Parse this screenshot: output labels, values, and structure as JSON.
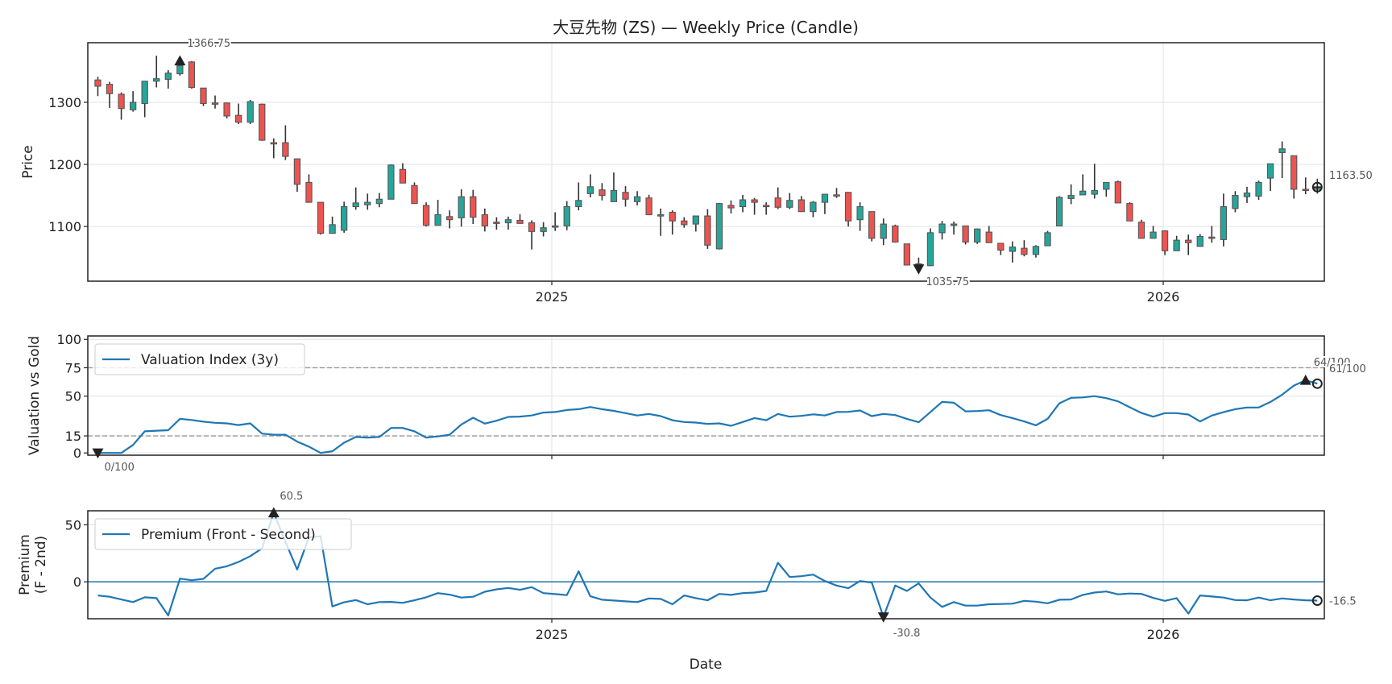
{
  "title": "大豆先物 (ZS) — Weekly Price (Candle)",
  "colors": {
    "up": "#26a69a",
    "down": "#ef5350",
    "candle_edge": "#555555",
    "wick": "#333333",
    "line": "#1f77b4",
    "threshold": "#999999",
    "grid": "#e6e6e6",
    "marker": "#222222"
  },
  "chart_data": [
    {
      "type": "candlestick",
      "ylabel": "Price",
      "ylim": [
        1012,
        1396
      ],
      "yticks": [
        1100,
        1200,
        1300
      ],
      "xticks": [
        {
          "label": "2025",
          "date": "2025-01-01"
        },
        {
          "label": "2026",
          "date": "2026-01-01"
        }
      ],
      "grid": true,
      "dates": [
        "2024-04-05",
        "2024-04-12",
        "2024-04-19",
        "2024-04-26",
        "2024-05-03",
        "2024-05-10",
        "2024-05-17",
        "2024-05-24",
        "2024-05-31",
        "2024-06-07",
        "2024-06-14",
        "2024-06-21",
        "2024-06-28",
        "2024-07-05",
        "2024-07-12",
        "2024-07-19",
        "2024-07-26",
        "2024-08-02",
        "2024-08-09",
        "2024-08-16",
        "2024-08-23",
        "2024-08-30",
        "2024-09-06",
        "2024-09-13",
        "2024-09-20",
        "2024-09-27",
        "2024-10-04",
        "2024-10-11",
        "2024-10-18",
        "2024-10-25",
        "2024-11-01",
        "2024-11-08",
        "2024-11-15",
        "2024-11-22",
        "2024-11-29",
        "2024-12-06",
        "2024-12-13",
        "2024-12-20",
        "2024-12-27",
        "2025-01-03",
        "2025-01-10",
        "2025-01-17",
        "2025-01-24",
        "2025-01-31",
        "2025-02-07",
        "2025-02-14",
        "2025-02-21",
        "2025-02-28",
        "2025-03-07",
        "2025-03-14",
        "2025-03-21",
        "2025-03-28",
        "2025-04-04",
        "2025-04-11",
        "2025-04-18",
        "2025-04-25",
        "2025-05-02",
        "2025-05-09",
        "2025-05-16",
        "2025-05-23",
        "2025-05-30",
        "2025-06-06",
        "2025-06-13",
        "2025-06-20",
        "2025-06-27",
        "2025-07-04",
        "2025-07-11",
        "2025-07-18",
        "2025-07-25",
        "2025-08-01",
        "2025-08-08",
        "2025-08-15",
        "2025-08-22",
        "2025-08-29",
        "2025-09-05",
        "2025-09-12",
        "2025-09-19",
        "2025-09-26",
        "2025-10-03",
        "2025-10-10",
        "2025-10-17",
        "2025-10-24",
        "2025-10-31",
        "2025-11-07",
        "2025-11-14",
        "2025-11-21",
        "2025-11-28",
        "2025-12-05",
        "2025-12-12",
        "2025-12-19",
        "2025-12-26",
        "2026-01-02",
        "2026-01-09",
        "2026-01-16",
        "2026-01-23",
        "2026-01-30",
        "2026-02-06",
        "2026-02-13",
        "2026-02-20",
        "2026-02-27",
        "2026-03-06",
        "2026-03-13",
        "2026-03-20",
        "2026-03-27",
        "2026-04-03"
      ],
      "ohlc_fields": [
        "open",
        "high",
        "low",
        "close"
      ],
      "ohlc": [
        [
          1336,
          1341,
          1310,
          1326
        ],
        [
          1329,
          1333,
          1291,
          1314
        ],
        [
          1313,
          1316,
          1272,
          1290
        ],
        [
          1288,
          1318,
          1285,
          1300
        ],
        [
          1298,
          1334,
          1276,
          1334
        ],
        [
          1334,
          1375,
          1324,
          1338
        ],
        [
          1337,
          1352,
          1322,
          1347
        ],
        [
          1346,
          1366.75,
          1343,
          1359
        ],
        [
          1365,
          1366.5,
          1322,
          1324
        ],
        [
          1323,
          1323,
          1294,
          1298
        ],
        [
          1299,
          1311,
          1290,
          1298
        ],
        [
          1299,
          1299,
          1274,
          1278
        ],
        [
          1279,
          1298,
          1265,
          1268
        ],
        [
          1268,
          1304,
          1265,
          1301
        ],
        [
          1297,
          1298,
          1238,
          1239
        ],
        [
          1235,
          1242,
          1210,
          1233
        ],
        [
          1235,
          1263,
          1207,
          1213
        ],
        [
          1209,
          1209,
          1156,
          1168
        ],
        [
          1171,
          1184,
          1139,
          1139
        ],
        [
          1139,
          1139,
          1087,
          1089
        ],
        [
          1089,
          1116,
          1089,
          1103
        ],
        [
          1094,
          1140,
          1090,
          1132
        ],
        [
          1132,
          1163,
          1127,
          1138
        ],
        [
          1135,
          1153,
          1127,
          1139
        ],
        [
          1137,
          1154,
          1131,
          1144
        ],
        [
          1144,
          1200,
          1144,
          1199
        ],
        [
          1192,
          1202,
          1170,
          1170
        ],
        [
          1166,
          1171,
          1137,
          1137
        ],
        [
          1134,
          1139,
          1100,
          1102
        ],
        [
          1102,
          1143,
          1102,
          1119
        ],
        [
          1116,
          1126,
          1097,
          1111
        ],
        [
          1114,
          1160,
          1100,
          1148
        ],
        [
          1148,
          1159,
          1104,
          1115
        ],
        [
          1119,
          1129,
          1092,
          1101
        ],
        [
          1107,
          1115,
          1095,
          1106
        ],
        [
          1106,
          1116,
          1095,
          1111
        ],
        [
          1110,
          1120,
          1105,
          1105
        ],
        [
          1106,
          1110,
          1063,
          1092
        ],
        [
          1092,
          1107,
          1084,
          1098
        ],
        [
          1100,
          1123,
          1093,
          1101
        ],
        [
          1101,
          1141,
          1094,
          1132
        ],
        [
          1132,
          1171,
          1126,
          1142
        ],
        [
          1153,
          1184,
          1147,
          1164
        ],
        [
          1159,
          1170,
          1142,
          1150
        ],
        [
          1140,
          1187,
          1140,
          1158
        ],
        [
          1155,
          1165,
          1132,
          1144
        ],
        [
          1140,
          1157,
          1134,
          1148
        ],
        [
          1146,
          1151,
          1119,
          1119
        ],
        [
          1119,
          1129,
          1085,
          1119
        ],
        [
          1123,
          1126,
          1087,
          1109
        ],
        [
          1109,
          1115,
          1098,
          1103
        ],
        [
          1104,
          1117,
          1092,
          1117
        ],
        [
          1117,
          1128,
          1064,
          1070
        ],
        [
          1064,
          1138,
          1063,
          1137
        ],
        [
          1134,
          1142,
          1121,
          1130
        ],
        [
          1132,
          1151,
          1123,
          1143
        ],
        [
          1143,
          1146,
          1119,
          1139
        ],
        [
          1134,
          1139,
          1119,
          1133
        ],
        [
          1146,
          1163,
          1128,
          1131
        ],
        [
          1131,
          1154,
          1128,
          1142
        ],
        [
          1143,
          1149,
          1124,
          1124
        ],
        [
          1124,
          1141,
          1115,
          1139
        ],
        [
          1139,
          1152,
          1120,
          1152
        ],
        [
          1151,
          1162,
          1146,
          1150
        ],
        [
          1155,
          1155,
          1100,
          1109
        ],
        [
          1111,
          1139,
          1093,
          1132
        ],
        [
          1124,
          1124,
          1076,
          1081
        ],
        [
          1081,
          1113,
          1070,
          1104
        ],
        [
          1101,
          1103,
          1074,
          1075
        ],
        [
          1072,
          1072,
          1038,
          1038
        ],
        [
          1040,
          1050,
          1035.75,
          1038
        ],
        [
          1037,
          1097,
          1036,
          1090
        ],
        [
          1090,
          1109,
          1079,
          1104
        ],
        [
          1103,
          1108,
          1087,
          1104
        ],
        [
          1101,
          1101,
          1071,
          1075
        ],
        [
          1075,
          1097,
          1072,
          1096
        ],
        [
          1091,
          1101,
          1074,
          1074
        ],
        [
          1073,
          1073,
          1054,
          1062
        ],
        [
          1060,
          1076,
          1042,
          1067
        ],
        [
          1065,
          1078,
          1052,
          1055
        ],
        [
          1055,
          1070,
          1050,
          1068
        ],
        [
          1069,
          1093,
          1069,
          1090
        ],
        [
          1101,
          1149,
          1101,
          1147
        ],
        [
          1145,
          1168,
          1136,
          1150
        ],
        [
          1151,
          1184,
          1151,
          1157
        ],
        [
          1152,
          1201,
          1145,
          1158
        ],
        [
          1160,
          1171,
          1148,
          1171
        ],
        [
          1172,
          1174,
          1138,
          1138
        ],
        [
          1137,
          1139,
          1109,
          1109
        ],
        [
          1107,
          1111,
          1081,
          1081
        ],
        [
          1081,
          1101,
          1081,
          1091
        ],
        [
          1093,
          1094,
          1054,
          1061
        ],
        [
          1061,
          1085,
          1061,
          1078
        ],
        [
          1078,
          1087,
          1054,
          1074
        ],
        [
          1068,
          1088,
          1068,
          1084
        ],
        [
          1083,
          1101,
          1074,
          1082
        ],
        [
          1079,
          1153,
          1068,
          1132
        ],
        [
          1129,
          1157,
          1123,
          1150
        ],
        [
          1148,
          1164,
          1138,
          1154
        ],
        [
          1149,
          1174,
          1143,
          1171
        ],
        [
          1178,
          1201,
          1157,
          1201
        ],
        [
          1219,
          1237,
          1178,
          1225
        ],
        [
          1214,
          1214,
          1145,
          1160
        ],
        [
          1160,
          1179,
          1152,
          1159
        ],
        [
          1160,
          1177,
          1153,
          1163.5
        ]
      ],
      "annotations": [
        {
          "kind": "max",
          "index": 7,
          "value": 1366.75,
          "text": "1366.75",
          "marker": "triangle-up"
        },
        {
          "kind": "min",
          "index": 70,
          "value": 1035.75,
          "text": "1035.75",
          "marker": "triangle-down"
        },
        {
          "kind": "last",
          "index": 104,
          "value": 1163.5,
          "text": "1163.50",
          "marker": "circle-plus"
        }
      ]
    },
    {
      "type": "line",
      "ylabel": "Valuation vs Gold",
      "ylim": [
        -2,
        103
      ],
      "yticks": [
        0,
        15,
        50,
        75,
        100
      ],
      "grid": true,
      "show_xtick_labels": false,
      "legend": {
        "label": "Valuation Index (3y)",
        "placement": "upper-left"
      },
      "reference_lines": [
        75,
        15
      ],
      "series": [
        {
          "name": "Valuation Index (3y)",
          "values": [
            0,
            0,
            0,
            7,
            19,
            19.6,
            20,
            30,
            29,
            27.5,
            26.5,
            26,
            24.5,
            26,
            17,
            16,
            16,
            10,
            5.5,
            0,
            1.5,
            9,
            14,
            13.5,
            14,
            22,
            22,
            19,
            13.5,
            14.5,
            16,
            25,
            31,
            25.8,
            28.4,
            31.7,
            32,
            33,
            35.5,
            36,
            37.8,
            38.5,
            40.4,
            38.5,
            37,
            35,
            33,
            34.3,
            32.4,
            28.8,
            27.2,
            26.7,
            25.5,
            26,
            23.9,
            27.2,
            30.7,
            28.8,
            34.3,
            31.9,
            32.6,
            34,
            33,
            36,
            36.2,
            37.4,
            32.4,
            34.3,
            33.3,
            30,
            27,
            36,
            45,
            44.2,
            36.6,
            36.9,
            37.6,
            33.3,
            30.7,
            27.7,
            24.3,
            30,
            43.7,
            48.5,
            48.9,
            50,
            48.2,
            45.4,
            40.2,
            35.2,
            31.9,
            35,
            35,
            33.8,
            27.7,
            32.9,
            35.9,
            38.5,
            40,
            40,
            44.9,
            51.3,
            59.3,
            64,
            61
          ]
        }
      ],
      "annotations": [
        {
          "kind": "min",
          "index": 0,
          "value": 0,
          "text": "0/100",
          "marker": "triangle-down"
        },
        {
          "kind": "max",
          "index": 103,
          "value": 64,
          "text": "64/100",
          "marker": "triangle-up"
        },
        {
          "kind": "last",
          "index": 104,
          "value": 61,
          "text": "61/100",
          "marker": "circle"
        }
      ]
    },
    {
      "type": "line",
      "ylabel": [
        "Premium",
        "(F - 2nd)"
      ],
      "xlabel": "Date",
      "ylim": [
        -32.4,
        62.3
      ],
      "yticks": [
        0,
        50
      ],
      "grid": true,
      "show_xtick_labels": true,
      "legend": {
        "label": "Premium (Front - Second)",
        "placement": "upper-left"
      },
      "zero_line": 0,
      "series": [
        {
          "name": "Premium (Front - Second)",
          "values": [
            -12,
            -13.1,
            -15.5,
            -17.8,
            -13.6,
            -14.3,
            -29.6,
            2.8,
            1.4,
            2.6,
            11.5,
            13.6,
            17.4,
            22.5,
            29.3,
            60.5,
            35,
            10.8,
            39,
            40,
            -21.6,
            -18,
            -16,
            -19.7,
            -17.8,
            -17.6,
            -18.5,
            -16.2,
            -13.6,
            -9.9,
            -11.3,
            -13.8,
            -13.1,
            -8.7,
            -6.6,
            -5.4,
            -7,
            -4.7,
            -9.9,
            -10.8,
            -11.7,
            9.2,
            -12.7,
            -15.7,
            -16.4,
            -17.1,
            -17.8,
            -14.6,
            -15,
            -19.7,
            -12,
            -14.3,
            -16.2,
            -10.6,
            -11.5,
            -9.9,
            -9.4,
            -8,
            16.7,
            4.2,
            4.9,
            6.3,
            0.7,
            -3.3,
            -5.6,
            0.7,
            -0.7,
            -30.8,
            -3.3,
            -8,
            -1.4,
            -13.8,
            -22,
            -17.8,
            -20.9,
            -20.9,
            -19.7,
            -19.5,
            -19.2,
            -16.7,
            -17.4,
            -18.8,
            -15.7,
            -15.5,
            -11.5,
            -9.4,
            -8.5,
            -11,
            -10.3,
            -10.6,
            -14.1,
            -16.7,
            -14.3,
            -27.9,
            -12,
            -12.9,
            -13.8,
            -16,
            -16.2,
            -13.8,
            -16.2,
            -14.6,
            -15.5,
            -16.2,
            -16.5
          ]
        }
      ],
      "annotations": [
        {
          "kind": "max",
          "index": 15,
          "value": 60.5,
          "text": "60.5",
          "marker": "triangle-up"
        },
        {
          "kind": "min",
          "index": 67,
          "value": -30.8,
          "text": "-30.8",
          "marker": "triangle-down"
        },
        {
          "kind": "last",
          "index": 104,
          "value": -16.5,
          "text": "-16.5",
          "marker": "circle"
        }
      ]
    }
  ]
}
